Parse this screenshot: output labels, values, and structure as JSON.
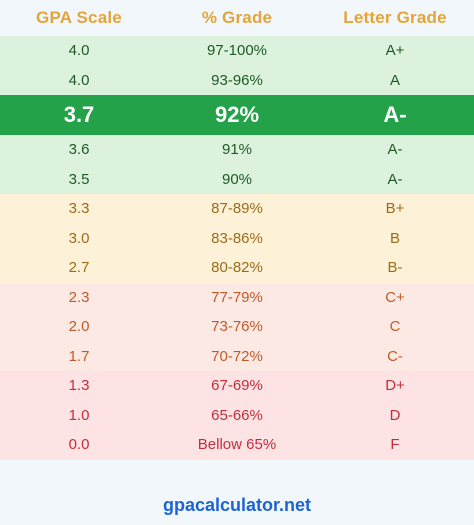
{
  "table": {
    "headers": [
      "GPA Scale",
      "% Grade",
      "Letter Grade"
    ],
    "rows": [
      {
        "gpa": "4.0",
        "percent": "97-100%",
        "letter": "A+",
        "band": "green"
      },
      {
        "gpa": "4.0",
        "percent": "93-96%",
        "letter": "A",
        "band": "green"
      },
      {
        "gpa": "3.7",
        "percent": "92%",
        "letter": "A-",
        "band": "highlight"
      },
      {
        "gpa": "3.6",
        "percent": "91%",
        "letter": "A-",
        "band": "green"
      },
      {
        "gpa": "3.5",
        "percent": "90%",
        "letter": "A-",
        "band": "green"
      },
      {
        "gpa": "3.3",
        "percent": "87-89%",
        "letter": "B+",
        "band": "yellow"
      },
      {
        "gpa": "3.0",
        "percent": "83-86%",
        "letter": "B",
        "band": "yellow"
      },
      {
        "gpa": "2.7",
        "percent": "80-82%",
        "letter": "B-",
        "band": "yellow"
      },
      {
        "gpa": "2.3",
        "percent": "77-79%",
        "letter": "C+",
        "band": "orange"
      },
      {
        "gpa": "2.0",
        "percent": "73-76%",
        "letter": "C",
        "band": "orange"
      },
      {
        "gpa": "1.7",
        "percent": "70-72%",
        "letter": "C-",
        "band": "orange"
      },
      {
        "gpa": "1.3",
        "percent": "67-69%",
        "letter": "D+",
        "band": "red"
      },
      {
        "gpa": "1.0",
        "percent": "65-66%",
        "letter": "D",
        "band": "red"
      },
      {
        "gpa": "0.0",
        "percent": "Bellow 65%",
        "letter": "F",
        "band": "red"
      }
    ]
  },
  "footer": {
    "site": "gpacalculator.net"
  },
  "colors": {
    "header_text": "#e3a53b",
    "highlight_bg": "#23a24a",
    "footer_link": "#1d63d6"
  }
}
